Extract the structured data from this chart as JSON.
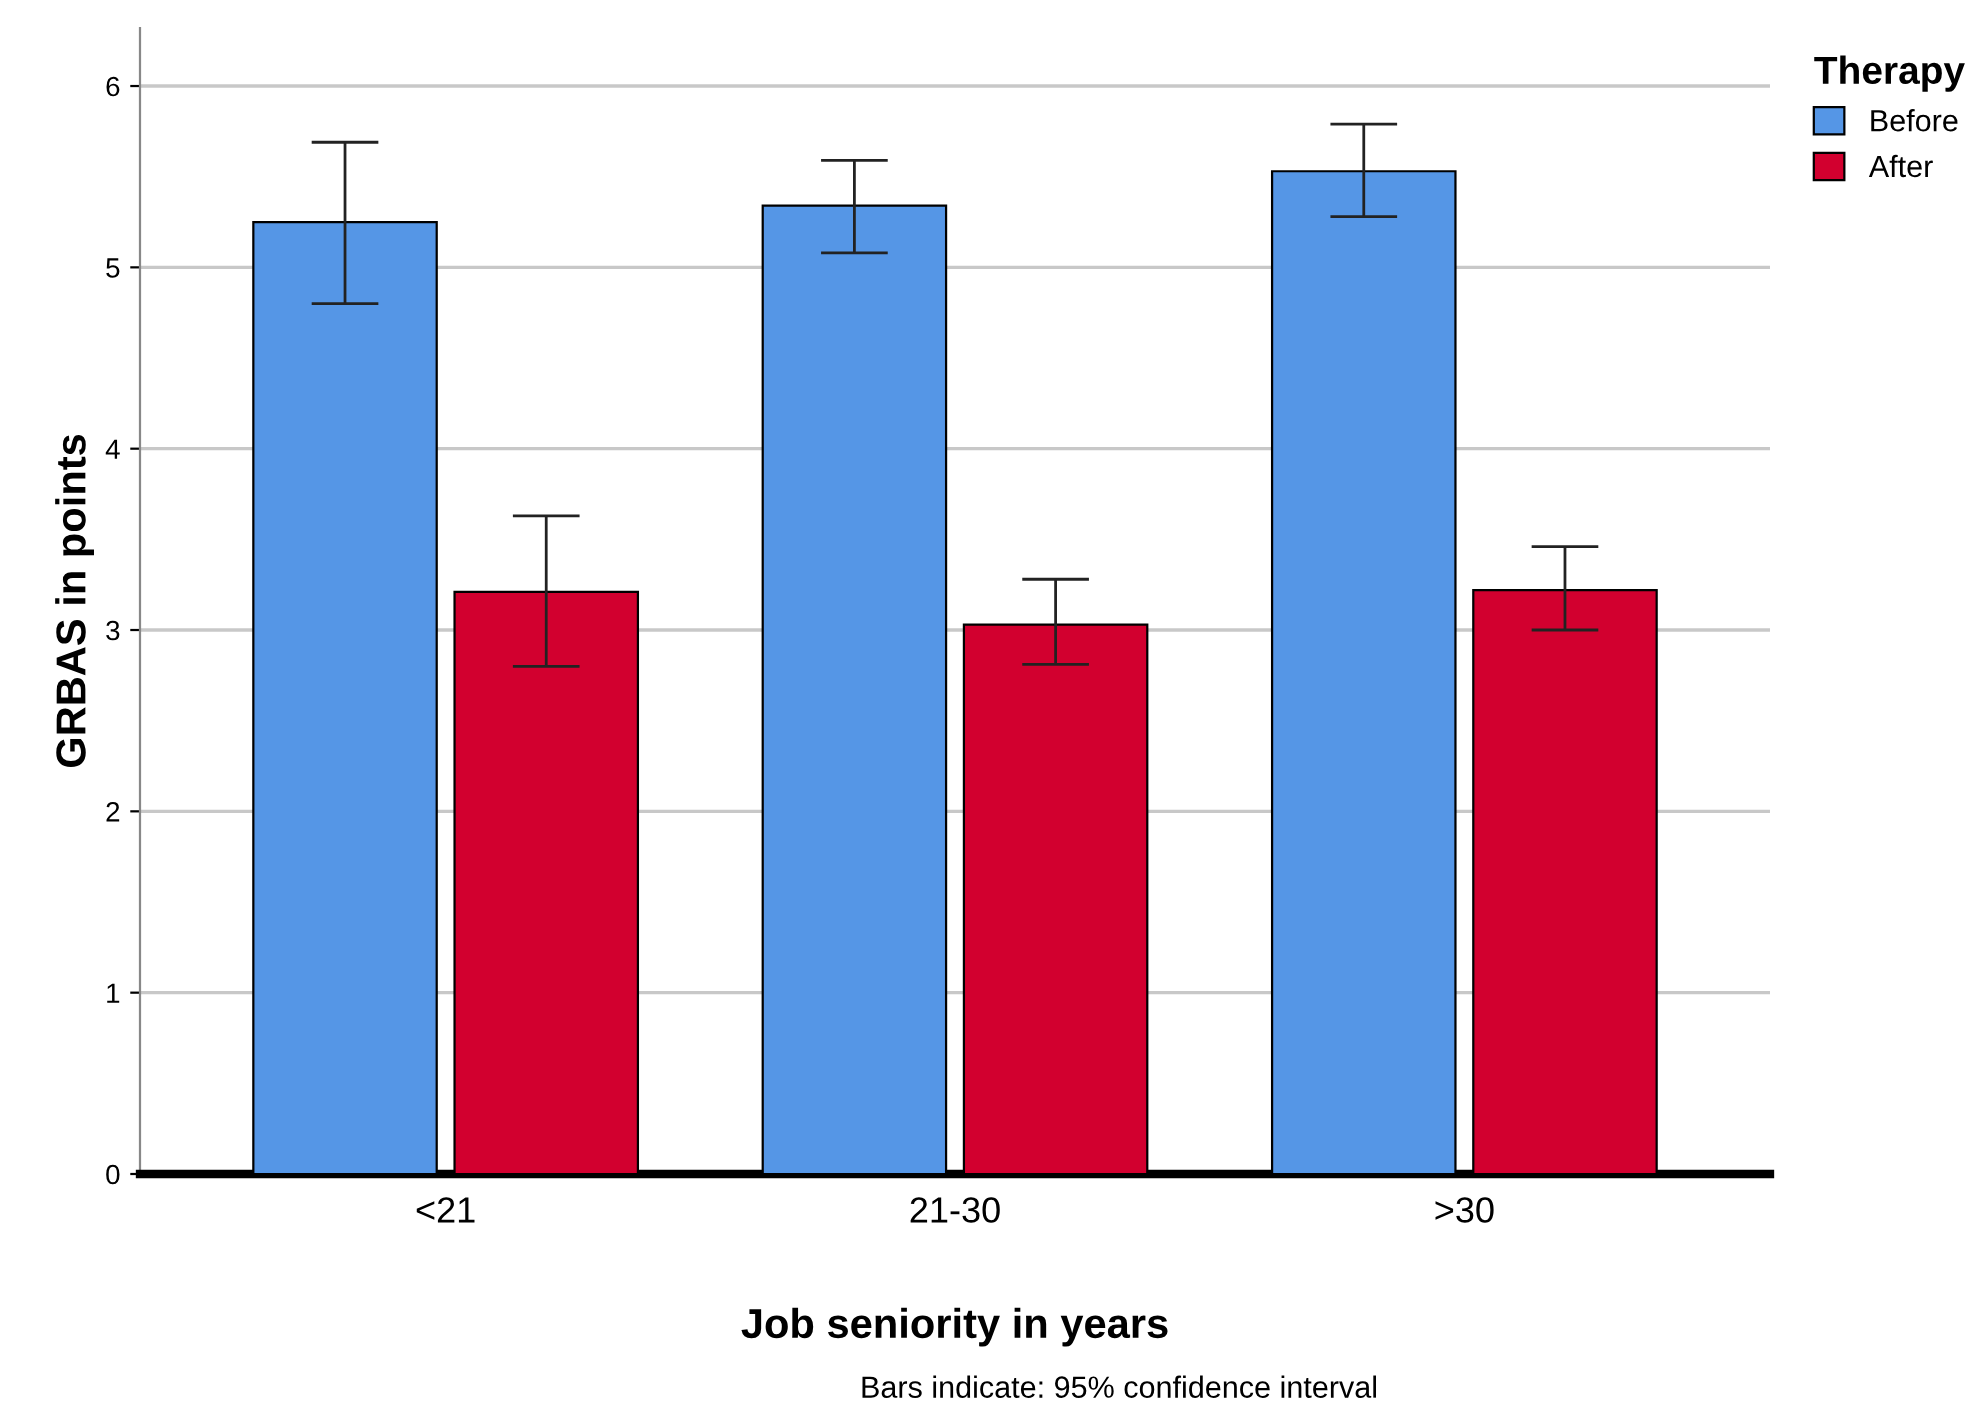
{
  "chart_data": {
    "type": "bar",
    "xlabel": "Job seniority in years",
    "ylabel": "GRBAS in points",
    "legend_title": "Therapy",
    "categories": [
      "<21",
      "21-30",
      ">30"
    ],
    "series": [
      {
        "name": "Before",
        "color": "#5596e6",
        "values": [
          5.25,
          5.34,
          5.53
        ],
        "errors": [
          [
            4.8,
            5.69
          ],
          [
            5.08,
            5.59
          ],
          [
            5.28,
            5.79
          ]
        ]
      },
      {
        "name": "After",
        "color": "#d2002f",
        "values": [
          3.21,
          3.03,
          3.22
        ],
        "errors": [
          [
            2.8,
            3.63
          ],
          [
            2.81,
            3.28
          ],
          [
            3.0,
            3.46
          ]
        ]
      }
    ],
    "ylim": [
      0,
      6.32
    ],
    "yticks": [
      0,
      1,
      2,
      3,
      4,
      5,
      6
    ],
    "grid": "y",
    "legend": "top right",
    "annotations": [
      "Bars indicate: 95% confidence interval"
    ]
  }
}
